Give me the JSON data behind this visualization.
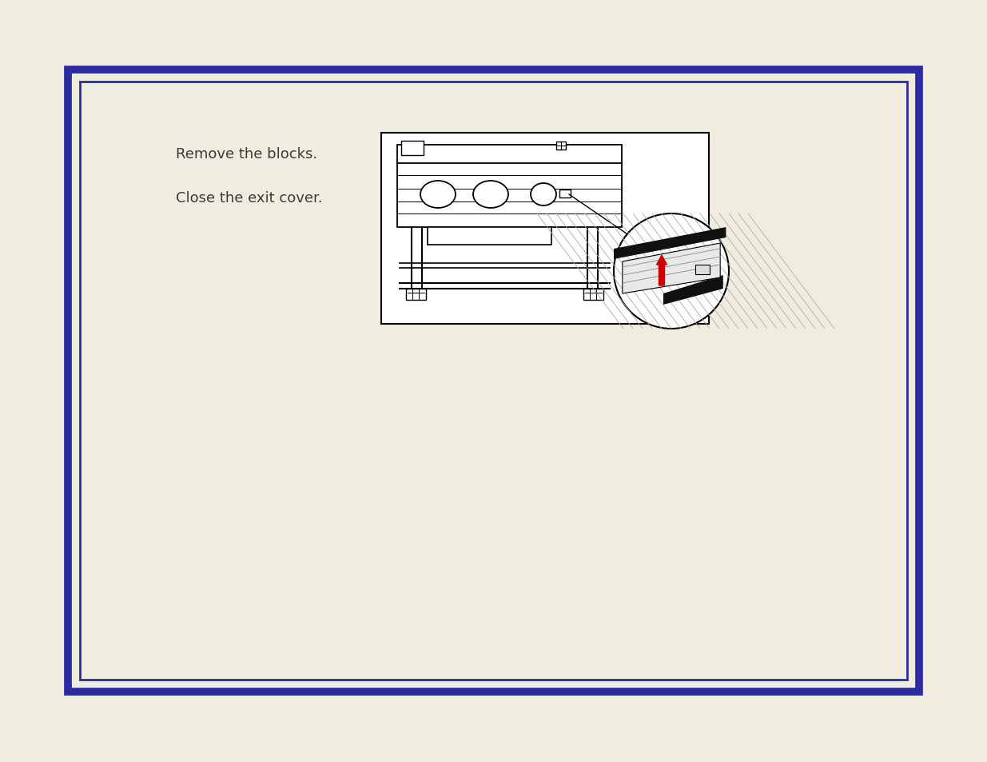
{
  "bg_color": "#f0ede0",
  "border_outer_color": "#2c2ca0",
  "border_inner_color": "#2c2ca0",
  "text1": "Remove the blocks.",
  "text2": "Close the exit cover.",
  "text_color": "#3a3a3a",
  "text_fontsize": 13.0,
  "red_arrow_color": "#cc0000",
  "white": "#ffffff",
  "black": "#000000"
}
